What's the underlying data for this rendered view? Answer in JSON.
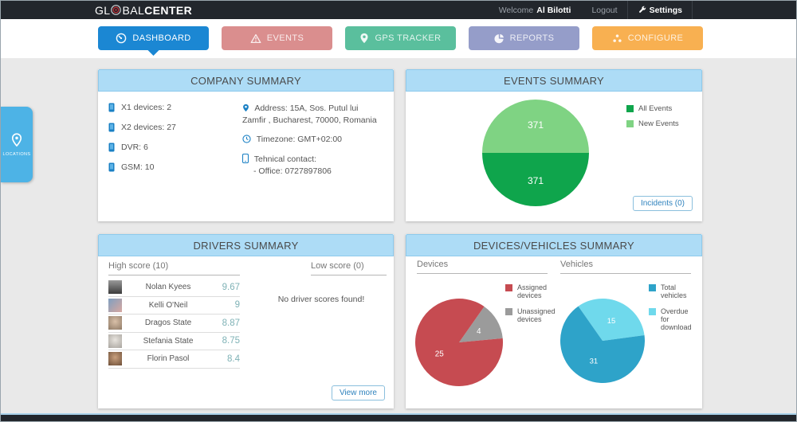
{
  "header": {
    "logo": {
      "prefix": "GL",
      "mid": "BAL",
      "bold": "CENTER"
    },
    "welcome_label": "Welcome",
    "user_name": "Al Bilotti",
    "logout_label": "Logout",
    "settings_label": "Settings"
  },
  "nav": {
    "tabs": [
      {
        "label": "DASHBOARD",
        "color": "#1b87d3",
        "active": true
      },
      {
        "label": "EVENTS",
        "color": "#da8e8e",
        "active": false
      },
      {
        "label": "GPS TRACKER",
        "color": "#5abf9d",
        "active": false
      },
      {
        "label": "REPORTS",
        "color": "#959dc9",
        "active": false
      },
      {
        "label": "CONFIGURE",
        "color": "#f8b051",
        "active": false
      }
    ]
  },
  "sidebar": {
    "locations_label": "LOCATIONS"
  },
  "company": {
    "title": "COMPANY SUMMARY",
    "device_counts": [
      "X1 devices: 2",
      "X2 devices: 27",
      "DVR: 6",
      "GSM: 10"
    ],
    "address": "Address: 15A, Sos. Putul lui Zamfir , Bucharest, 70000, Romania",
    "timezone": "Timezone: GMT+02:00",
    "contact_label": "Tehnical contact:",
    "contact_office": "- Office: 0727897806"
  },
  "events": {
    "title": "EVENTS SUMMARY",
    "incidents_button": "Incidents (0)"
  },
  "drivers": {
    "title": "DRIVERS SUMMARY",
    "high_score_label": "High score (10)",
    "low_score_label": "Low score (0)",
    "empty_message": "No driver scores found!",
    "view_more_button": "View more",
    "high_scores": [
      {
        "name": "Nolan Kyees",
        "score": "9.67"
      },
      {
        "name": "Kelli O'Neil",
        "score": "9"
      },
      {
        "name": "Dragos State",
        "score": "8.87"
      },
      {
        "name": "Stefania State",
        "score": "8.75"
      },
      {
        "name": "Florin Pasol",
        "score": "8.4"
      }
    ]
  },
  "devices_vehicles": {
    "title": "DEVICES/VEHICLES SUMMARY",
    "devices_label": "Devices",
    "vehicles_label": "Vehicles"
  },
  "chart_data": [
    {
      "name": "events-summary-pie",
      "type": "pie",
      "start_angle": -90,
      "slices": [
        {
          "label": "New Events",
          "value": 371,
          "color": "#7fd383"
        },
        {
          "label": "All Events",
          "value": 371,
          "color": "#0fa54c"
        }
      ],
      "legend": [
        {
          "label": "All Events",
          "color": "#0fa54c"
        },
        {
          "label": "New Events",
          "color": "#7fd383"
        }
      ]
    },
    {
      "name": "devices-pie",
      "type": "pie",
      "start_angle": 35,
      "slices": [
        {
          "label": "Unassigned devices",
          "value": 4,
          "color": "#9b9b9b"
        },
        {
          "label": "Assigned devices",
          "value": 25,
          "color": "#c64b51"
        }
      ],
      "legend": [
        {
          "label": "Assigned devices",
          "color": "#c64b51"
        },
        {
          "label": "Unassigned devices",
          "color": "#9b9b9b"
        }
      ]
    },
    {
      "name": "vehicles-pie",
      "type": "pie",
      "start_angle": -35,
      "slices": [
        {
          "label": "Overdue for download",
          "value": 15,
          "color": "#6fd9ec"
        },
        {
          "label": "Total vehicles",
          "value": 31,
          "color": "#2ea3c9"
        }
      ],
      "legend": [
        {
          "label": "Total vehicles",
          "color": "#2ea3c9"
        },
        {
          "label": "Overdue for download",
          "color": "#6fd9ec"
        }
      ]
    }
  ]
}
